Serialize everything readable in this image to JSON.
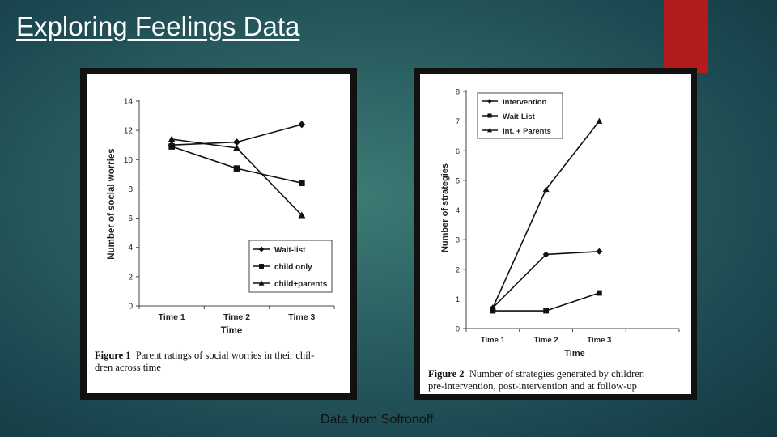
{
  "slide": {
    "title": "Exploring Feelings Data",
    "source": "Data from Sofronoff",
    "accent_color": "#b21c1c"
  },
  "figure1": {
    "caption_label": "Figure 1",
    "caption_line1": "Parent ratings of social worries in their chil-",
    "caption_line2": "dren across time"
  },
  "figure2": {
    "caption_label": "Figure 2",
    "caption_line1": "Number of strategies generated by children",
    "caption_line2": "pre-intervention, post-intervention and at follow-up"
  },
  "chart_data": [
    {
      "type": "line",
      "x": [
        "Time 1",
        "Time 2",
        "Time 3"
      ],
      "xlabel": "Time",
      "ylabel": "Number of social worries",
      "ylim": [
        0,
        14
      ],
      "yticks": [
        "0",
        "2",
        "4",
        "6",
        "8",
        "10",
        "12",
        "14"
      ],
      "legend_position": "bottom-right",
      "grid": false,
      "series": [
        {
          "name": "Wait-list",
          "marker": "diamond",
          "values": [
            11.0,
            11.2,
            12.4
          ]
        },
        {
          "name": "child only",
          "marker": "square",
          "values": [
            10.9,
            9.4,
            8.4
          ]
        },
        {
          "name": "child+parents",
          "marker": "triangle",
          "values": [
            11.4,
            10.8,
            6.2
          ]
        }
      ]
    },
    {
      "type": "line",
      "x": [
        "Time 1",
        "Time 2",
        "Time 3"
      ],
      "xlabel": "Time",
      "ylabel": "Number of strategies",
      "ylim": [
        0,
        8
      ],
      "yticks": [
        "0",
        "1",
        "2",
        "3",
        "4",
        "5",
        "6",
        "7",
        "8"
      ],
      "legend_position": "top-left",
      "grid": false,
      "series": [
        {
          "name": "Intervention",
          "marker": "diamond",
          "values": [
            0.7,
            2.5,
            2.6
          ]
        },
        {
          "name": "Wait-List",
          "marker": "square",
          "values": [
            0.6,
            0.6,
            1.2
          ]
        },
        {
          "name": "Int. + Parents",
          "marker": "triangle",
          "values": [
            0.7,
            4.7,
            7.0
          ]
        }
      ]
    }
  ]
}
